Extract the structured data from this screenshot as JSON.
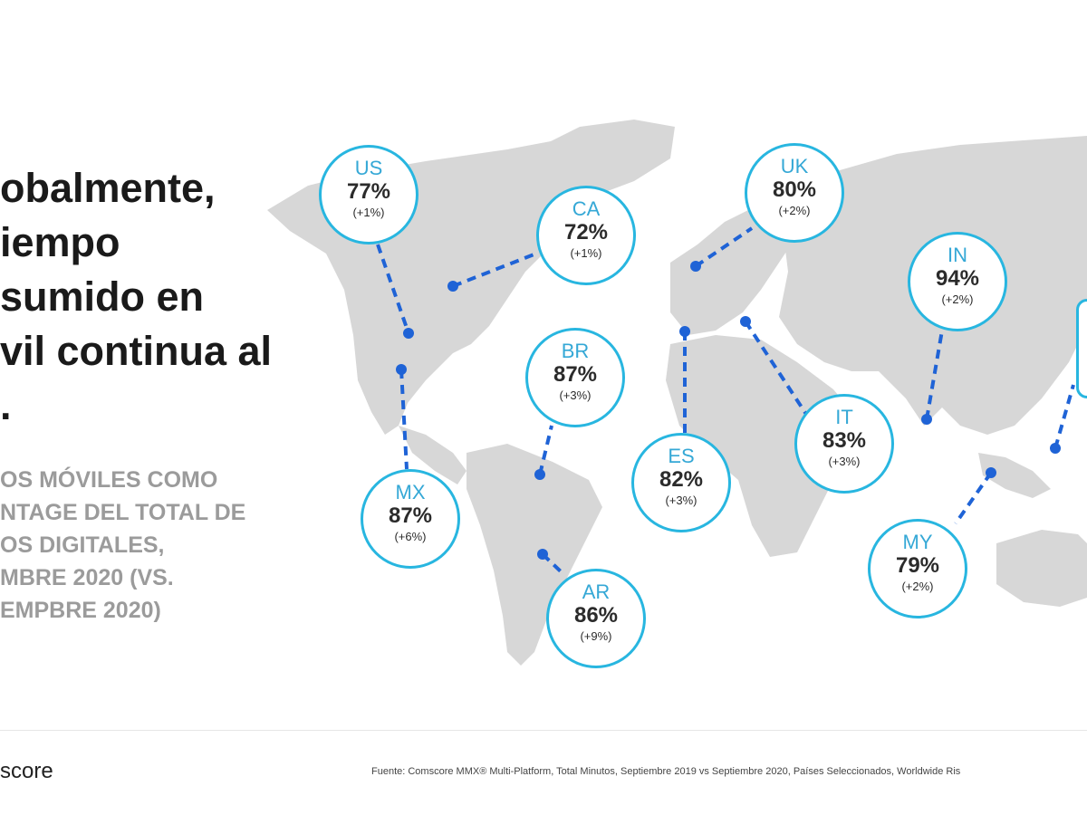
{
  "headline": "obalmente,\niempo\nsumido en\nvil continua al\n.",
  "subtitle": "OS MÓVILES COMO\nNTAGE DEL TOTAL DE\nOS DIGITALES,\nMBRE 2020 (VS.\nEMPBRE 2020)",
  "markets": [
    {
      "code": "US",
      "share": "77%",
      "change": "(+1%)"
    },
    {
      "code": "CA",
      "share": "72%",
      "change": "(+1%)"
    },
    {
      "code": "UK",
      "share": "80%",
      "change": "(+2%)"
    },
    {
      "code": "IN",
      "share": "94%",
      "change": "(+2%)"
    },
    {
      "code": "BR",
      "share": "87%",
      "change": "(+3%)"
    },
    {
      "code": "IT",
      "share": "83%",
      "change": "(+3%)"
    },
    {
      "code": "ES",
      "share": "82%",
      "change": "(+3%)"
    },
    {
      "code": "MX",
      "share": "87%",
      "change": "(+6%)"
    },
    {
      "code": "MY",
      "share": "79%",
      "change": "(+2%)"
    },
    {
      "code": "AR",
      "share": "86%",
      "change": "(+9%)"
    }
  ],
  "footer": {
    "logo": "score",
    "source": "Fuente: Comscore MMX® Multi-Platform, Total Minutos, Septiembre 2019 vs Septiembre 2020, Países Seleccionados, Worldwide Ris"
  },
  "colors": {
    "accent_line": "#1f63d6",
    "bubble_border": "#28b6e0",
    "land": "#d7d7d7"
  }
}
